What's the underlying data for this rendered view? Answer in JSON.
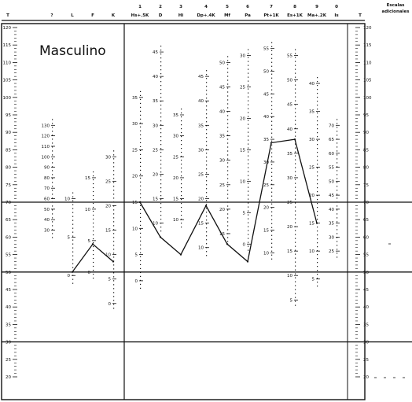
{
  "chart_data": {
    "type": "line",
    "title": "Masculino",
    "right_header": [
      "Escalas",
      "adicionales"
    ],
    "scale_numbers": [
      "1",
      "2",
      "3",
      "4",
      "5",
      "6",
      "7",
      "8",
      "9",
      "0"
    ],
    "columns": [
      "T",
      "?",
      "L",
      "F",
      "K",
      "Hs+.5K",
      "D",
      "Hi",
      "Dp+.4K",
      "Mf",
      "Pa",
      "Pt+1K",
      "Es+1K",
      "Ma+.2K",
      "Is",
      "T"
    ],
    "t_ticks": [
      "120",
      "115",
      "110",
      "105",
      "100",
      "95",
      "90",
      "85",
      "80",
      "75",
      "70",
      "65",
      "60",
      "55",
      "50",
      "45",
      "40",
      "35",
      "30",
      "25",
      "20"
    ],
    "ylim": [
      0,
      120
    ],
    "validity_profile": {
      "x": [
        "L",
        "F",
        "K"
      ],
      "t_values": [
        50,
        58,
        53
      ]
    },
    "clinical_profile": {
      "x": [
        "Hs+.5K",
        "D",
        "Hi",
        "Dp+.4K",
        "Mf",
        "Pa",
        "Pt+1K",
        "Es+1K",
        "Ma+.2K"
      ],
      "t_values": [
        70,
        60,
        55,
        69,
        58,
        53,
        87,
        88,
        64
      ]
    },
    "raw_score_labels": {
      "?": [
        "130",
        "120",
        "110",
        "100",
        "90",
        "80",
        "70",
        "60",
        "50",
        "40",
        "30"
      ],
      "L": [
        "10",
        "5",
        "0"
      ],
      "F": [
        "15",
        "10",
        "5",
        "0"
      ],
      "K": [
        "30",
        "25",
        "20",
        "15",
        "10",
        "5",
        "0"
      ],
      "Hs+.5K": [
        "35",
        "30",
        "25",
        "20",
        "15",
        "10",
        "5",
        "0"
      ],
      "D": [
        "45",
        "40",
        "35",
        "30",
        "25",
        "20",
        "15",
        "10"
      ],
      "Hi": [
        "35",
        "30",
        "25",
        "20",
        "15",
        "10"
      ],
      "Dp+.4K": [
        "45",
        "40",
        "35",
        "30",
        "25",
        "20",
        "15",
        "10"
      ],
      "Mf": [
        "50",
        "45",
        "40",
        "35",
        "30",
        "25",
        "20",
        "15"
      ],
      "Pa": [
        "30",
        "25",
        "20",
        "15",
        "10",
        "5",
        "0"
      ],
      "Pt+1K": [
        "55",
        "50",
        "45",
        "40",
        "35",
        "30",
        "25",
        "20",
        "15",
        "10"
      ],
      "Es+1K": [
        "55",
        "50",
        "45",
        "40",
        "35",
        "30",
        "25",
        "20",
        "15",
        "10",
        "5"
      ],
      "Ma+.2K": [
        "40",
        "35",
        "30",
        "25",
        "20",
        "15",
        "10",
        "5"
      ],
      "Is": [
        "70",
        "65",
        "60",
        "55",
        "50",
        "45",
        "40",
        "35",
        "30",
        "25"
      ]
    },
    "reference_lines_t": [
      70,
      50,
      30
    ],
    "grid": false
  },
  "colors": {
    "ink": "#111111",
    "background": "#ffffff"
  }
}
